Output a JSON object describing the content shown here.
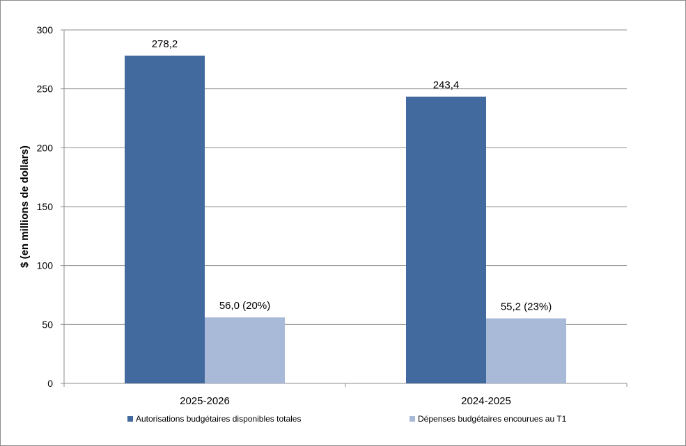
{
  "chart_data": {
    "type": "bar",
    "title": "",
    "xlabel": "",
    "ylabel": "$ (en millions de dollars)",
    "ylim": [
      0,
      300
    ],
    "yticks": [
      0,
      50,
      100,
      150,
      200,
      250,
      300
    ],
    "grid": true,
    "legend_position": "bottom",
    "categories": [
      "2025-2026",
      "2024-2025"
    ],
    "series": [
      {
        "name": "Autorisations budgétaires disponibles totales",
        "color": "#426A9E",
        "values": [
          278.2,
          243.4
        ],
        "labels": [
          "278,2",
          "243,4"
        ]
      },
      {
        "name": "Dépenses budgétaires encourues au T1",
        "color": "#A9BAD8",
        "values": [
          56.0,
          55.2
        ],
        "labels": [
          "56,0 (20%)",
          "55,2 (23%)"
        ]
      }
    ]
  }
}
